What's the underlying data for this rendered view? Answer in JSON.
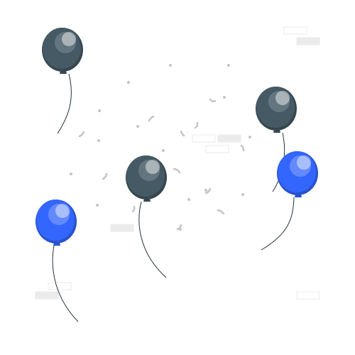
{
  "colors": {
    "background": "#ffffff",
    "dark_balloon": "#455a64",
    "dark_balloon_shade": "#37474f",
    "dark_balloon_highlight": "#7b8c95",
    "blue_balloon": "#3366ff",
    "blue_balloon_shade": "#2952cc",
    "blue_balloon_highlight": "#8aa6ff",
    "string": "#263238",
    "confetti": "#c4c4c4",
    "faint_shape": "#ebebeb"
  },
  "icons": [
    "balloon-dark",
    "balloon-blue",
    "confetti"
  ]
}
